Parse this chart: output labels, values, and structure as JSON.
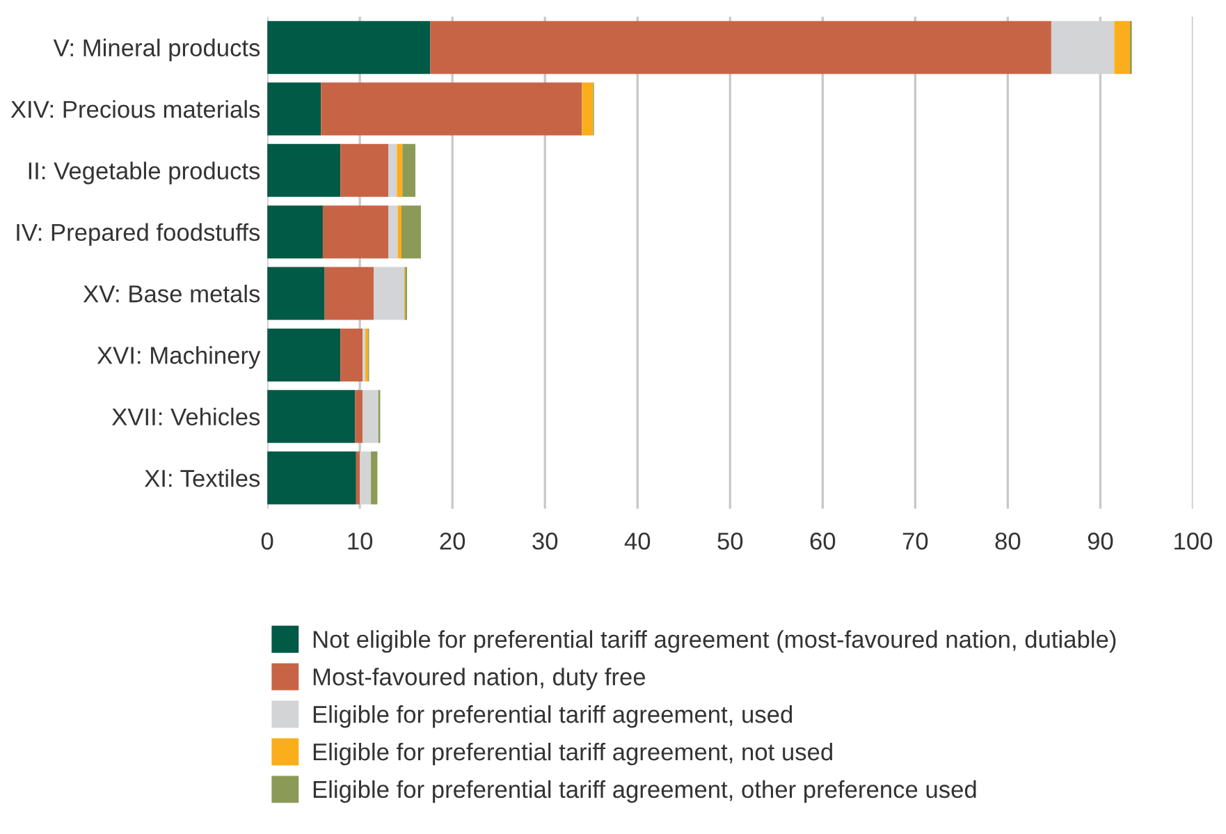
{
  "chart_data": {
    "type": "bar",
    "orientation": "horizontal",
    "stacked": true,
    "categories": [
      "V: Mineral products",
      "XIV: Precious materials",
      "II: Vegetable products",
      "IV: Prepared foodstuffs",
      "XV: Base metals",
      "XVI: Machinery",
      "XVII: Vehicles",
      "XI: Textiles"
    ],
    "series": [
      {
        "name": "Not eligible for preferential tariff agreement (most-favoured nation, dutiable)",
        "color": "#005a45",
        "values": [
          17.6,
          5.8,
          7.9,
          6.0,
          6.2,
          7.9,
          9.5,
          9.6
        ]
      },
      {
        "name": "Most-favoured nation, duty free",
        "color": "#c86446",
        "values": [
          67.1,
          28.2,
          5.2,
          7.1,
          5.3,
          2.4,
          0.8,
          0.4
        ]
      },
      {
        "name": "Eligible for preferential tariff agreement, used",
        "color": "#d3d4d5",
        "values": [
          6.8,
          null,
          0.9,
          1.0,
          3.3,
          0.3,
          1.7,
          1.2
        ]
      },
      {
        "name": "Eligible for preferential tariff agreement, not used",
        "color": "#fbae1b",
        "values": [
          1.7,
          1.2,
          0.6,
          0.4,
          0.1,
          0.3,
          0.0,
          0.0
        ]
      },
      {
        "name": "Eligible for preferential tariff agreement, other preference used",
        "color": "#8b9a56",
        "values": [
          0.2,
          0.1,
          1.4,
          2.1,
          0.2,
          0.1,
          0.2,
          0.7
        ]
      }
    ],
    "xlim": [
      0,
      100
    ],
    "xticks": [
      0,
      10,
      20,
      30,
      40,
      50,
      60,
      70,
      80,
      90,
      100
    ],
    "grid": "x",
    "legend": "bottom",
    "marker": "square"
  }
}
